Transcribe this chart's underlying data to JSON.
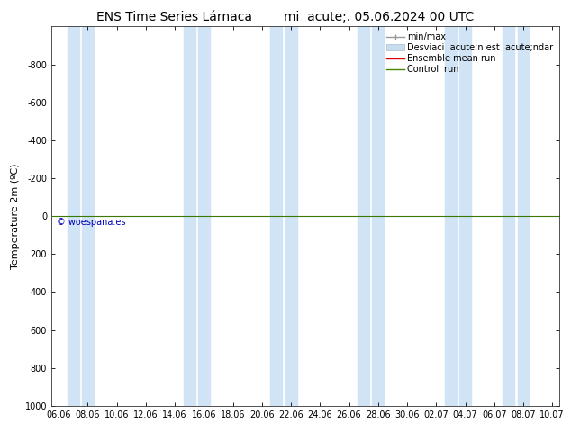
{
  "title_part1": "ENS Time Series Lárnaca",
  "title_part2": "mi  acute;. 05.06.2024 00 UTC",
  "ylabel": "Temperature 2m (ºC)",
  "ylim_bottom": 1000,
  "ylim_top": -1000,
  "yticks": [
    -800,
    -600,
    -400,
    -200,
    0,
    200,
    400,
    600,
    800,
    1000
  ],
  "xtick_labels": [
    "06.06",
    "08.06",
    "10.06",
    "12.06",
    "14.06",
    "16.06",
    "18.06",
    "20.06",
    "22.06",
    "24.06",
    "26.06",
    "28.06",
    "30.06",
    "02.07",
    "04.07",
    "06.07",
    "08.07",
    "10.07"
  ],
  "xtick_positions": [
    0,
    2,
    4,
    6,
    8,
    10,
    12,
    14,
    16,
    18,
    20,
    22,
    24,
    26,
    28,
    30,
    32,
    34
  ],
  "bg_color": "#ffffff",
  "plot_bg_color": "#ffffff",
  "shaded_band_color": "#d0e4f5",
  "shaded_band_pairs": [
    [
      1,
      2
    ],
    [
      9,
      10
    ],
    [
      15,
      16
    ],
    [
      21,
      22
    ],
    [
      27,
      28
    ],
    [
      31,
      32
    ]
  ],
  "watermark": "© woespana.es",
  "watermark_color": "#0000bb",
  "horizontal_line_color_green": "#3a7a00",
  "legend_entry_minmax": "min/max",
  "legend_entry_desv": "Desviaci  acute;n est  acute;ndar",
  "legend_entry_ensemble": "Ensemble mean run",
  "legend_entry_control": "Controll run",
  "legend_color_minmax": "#999999",
  "legend_color_desv": "#c8dded",
  "legend_color_ensemble": "#dd0000",
  "legend_color_control": "#448800",
  "font_size_title": 10,
  "font_size_axis": 8,
  "font_size_ticks": 7,
  "font_size_legend": 7
}
